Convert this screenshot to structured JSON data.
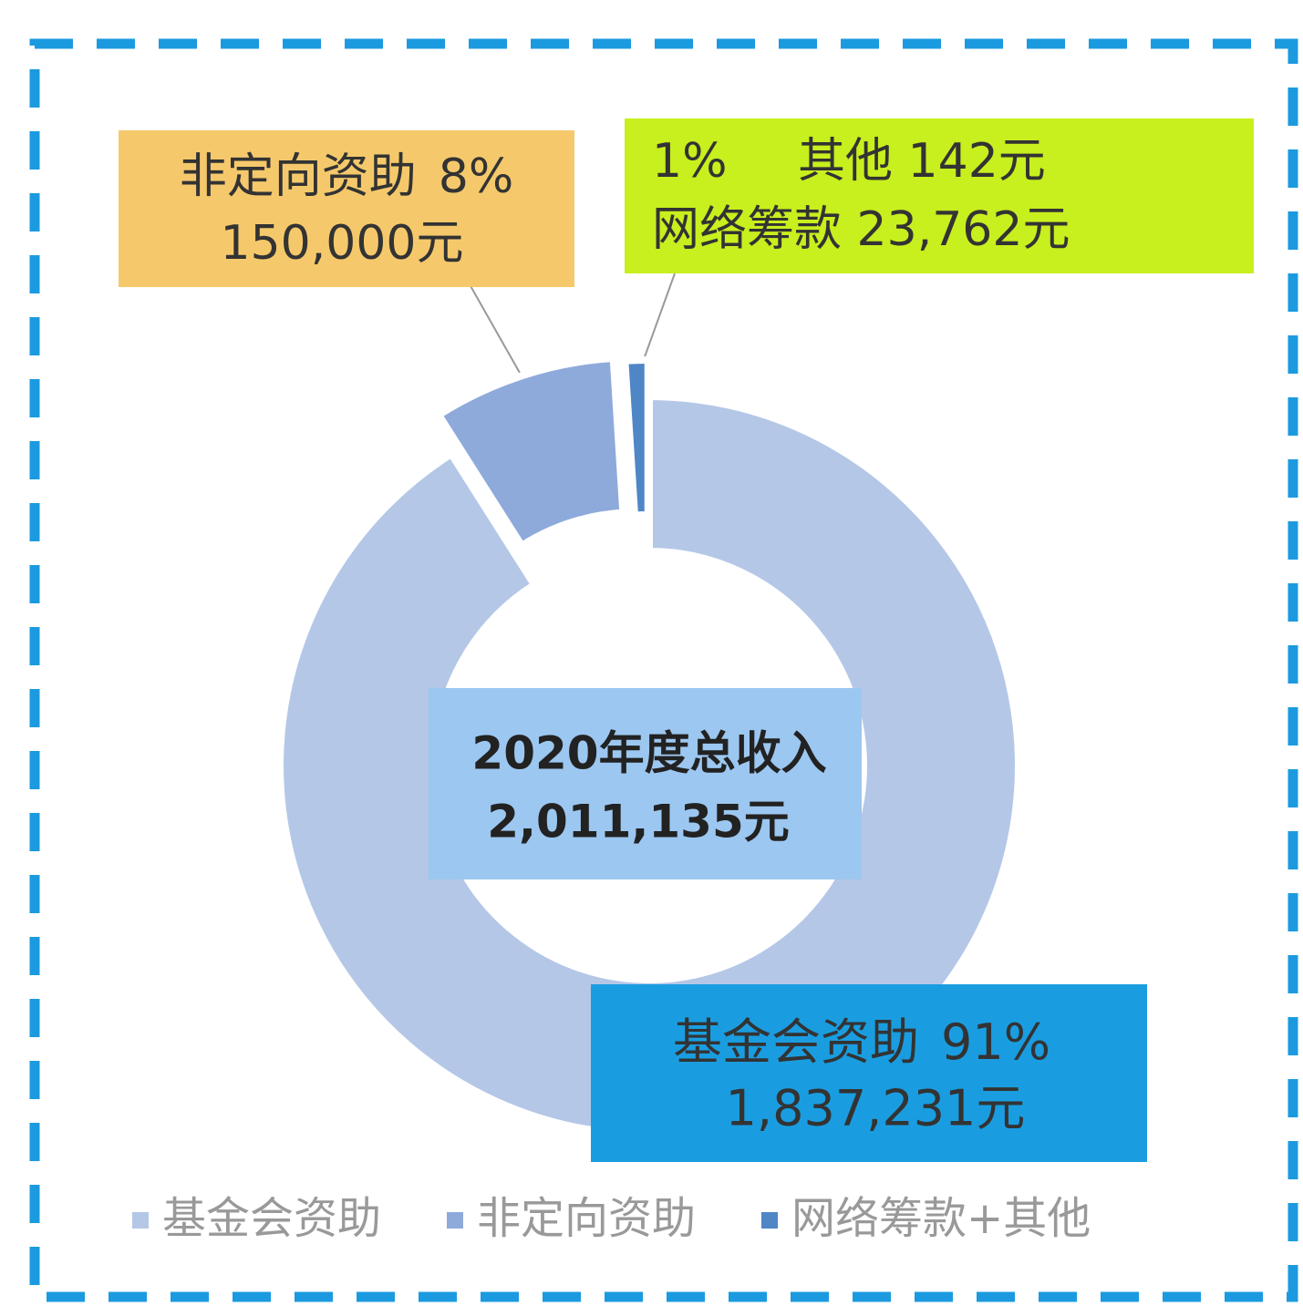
{
  "chart_data": {
    "type": "donut",
    "title": "2020年度总收入",
    "subtitle": "2,011,135元",
    "categories": [
      "基金会资助",
      "非定向资助",
      "网络筹款+其他"
    ],
    "values": [
      91,
      8,
      1
    ],
    "value_labels": [
      "91%",
      "8%",
      "1%"
    ],
    "colors": [
      "#b4c7e7",
      "#8eaadb",
      "#4f86c6"
    ],
    "annotations": [
      [
        "1,837,231元"
      ],
      [
        "150,000元"
      ],
      [
        "其他 142元",
        "网络筹款 23,762元"
      ]
    ],
    "legend": "bottom"
  }
}
